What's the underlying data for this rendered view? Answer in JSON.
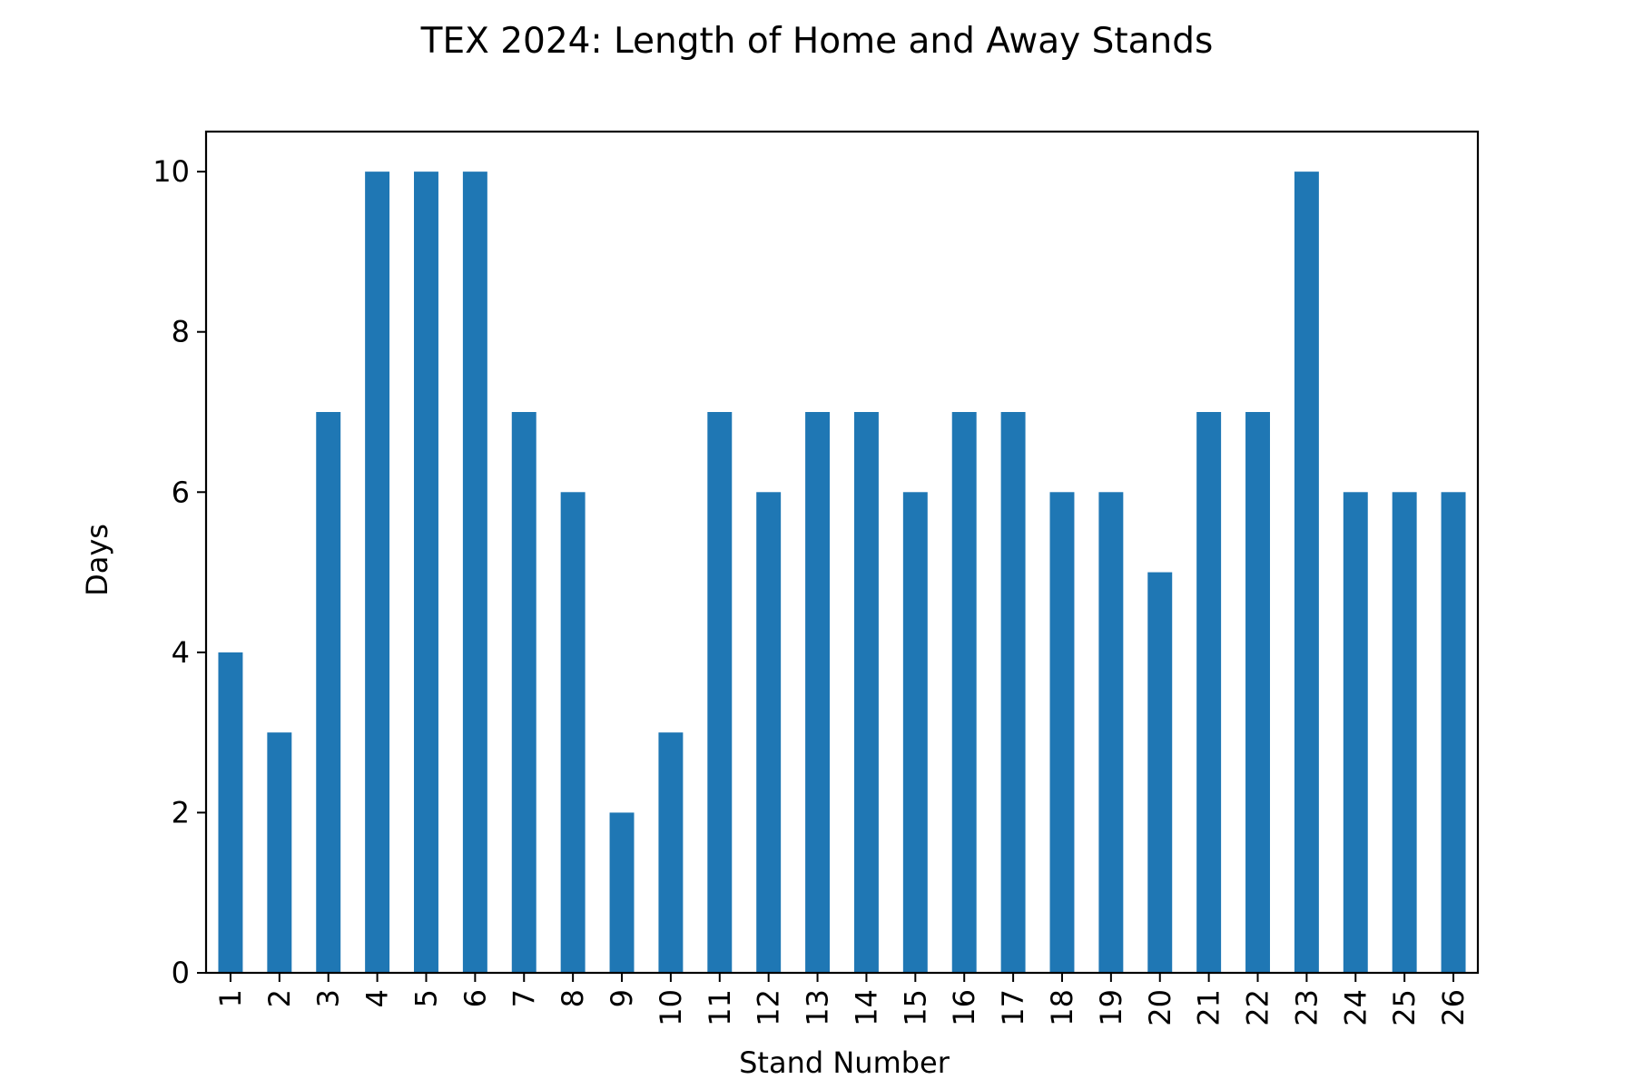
{
  "chart_data": {
    "type": "bar",
    "title": "TEX 2024: Length of Home and Away Stands",
    "xlabel": "Stand Number",
    "ylabel": "Days",
    "categories": [
      "1",
      "2",
      "3",
      "4",
      "5",
      "6",
      "7",
      "8",
      "9",
      "10",
      "11",
      "12",
      "13",
      "14",
      "15",
      "16",
      "17",
      "18",
      "19",
      "20",
      "21",
      "22",
      "23",
      "24",
      "25",
      "26"
    ],
    "values": [
      4,
      3,
      7,
      10,
      10,
      10,
      7,
      6,
      2,
      3,
      7,
      6,
      7,
      7,
      6,
      7,
      7,
      6,
      6,
      5,
      7,
      7,
      10,
      6,
      6,
      6
    ],
    "ylim": [
      0,
      10.5
    ],
    "yticks": [
      0,
      2,
      4,
      6,
      8,
      10
    ],
    "bar_color": "#1f77b4",
    "grid": false,
    "legend": "none",
    "xtick_rotation": "vertical"
  }
}
